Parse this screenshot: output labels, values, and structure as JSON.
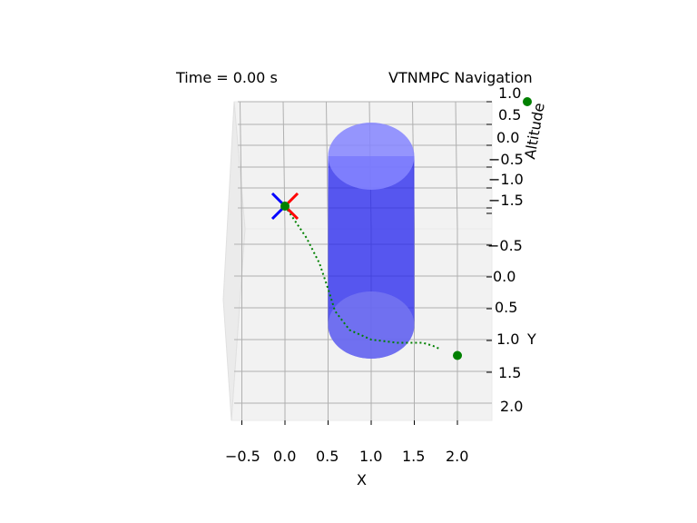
{
  "chart_data": {
    "type": "3d-line",
    "title_left": "Time = 0.00 s",
    "title_right": "VTNMPC Navigation",
    "xlabel": "X",
    "ylabel": "Y",
    "zlabel": "Altitude",
    "x_ticks": [
      "−0.5",
      "0.0",
      "0.5",
      "1.0",
      "1.5",
      "2.0"
    ],
    "y_ticks": [
      "−0.5",
      "0.0",
      "0.5",
      "1.0",
      "1.5",
      "2.0"
    ],
    "z_ticks": [
      "1.0",
      "0.5",
      "0.0",
      "−0.5",
      "−1.0",
      "−1.5"
    ],
    "xlim": [
      -0.6,
      2.4
    ],
    "ylim": [
      -0.6,
      2.2
    ],
    "grid": true,
    "obstacle": {
      "shape": "cylinder",
      "center_x": 1.0,
      "center_y": 0.6,
      "radius": 0.5,
      "color": "#2222ee"
    },
    "drone": {
      "x": 0.0,
      "y": -1.1,
      "arm_colors": [
        "#ff0000",
        "#0000ff"
      ],
      "marker_color": "#008000"
    },
    "goal": {
      "x": 2.0,
      "y": 1.25,
      "color": "#008000"
    },
    "trajectory": {
      "color": "#008000",
      "style": "dotted",
      "points": [
        [
          0.0,
          -1.1
        ],
        [
          0.1,
          -0.9
        ],
        [
          0.25,
          -0.6
        ],
        [
          0.4,
          -0.2
        ],
        [
          0.5,
          0.2
        ],
        [
          0.58,
          0.55
        ],
        [
          0.75,
          0.85
        ],
        [
          1.0,
          1.0
        ],
        [
          1.3,
          1.05
        ],
        [
          1.6,
          1.05
        ],
        [
          1.72,
          1.1
        ],
        [
          1.8,
          1.15
        ]
      ]
    }
  }
}
